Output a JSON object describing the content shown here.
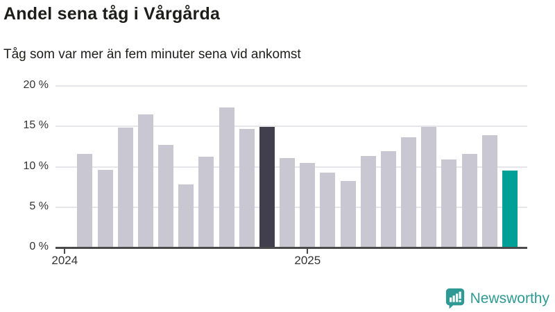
{
  "header": {
    "title": "Andel sena tåg i Vårgårda",
    "subtitle": "Tåg som var mer än fem minuter sena vid ankomst"
  },
  "branding": {
    "name": "Newsworthy",
    "logo_icon": "bar-chart-speech-bubble-icon"
  },
  "colors": {
    "background": "#ffffff",
    "bar_default": "#c9c7d2",
    "bar_highlight_dark": "#413e4d",
    "bar_highlight_teal": "#00a096",
    "axis": "#4a4a4a",
    "gridline": "#e6e5e9",
    "tick_text": "#333333",
    "title_text": "#1d1d1b",
    "brand_teal": "#2f9a93"
  },
  "chart_data": {
    "type": "bar",
    "title": "Andel sena tåg i Vårgårda",
    "subtitle": "Tåg som var mer än fem minuter sena vid ankomst",
    "unit": "%",
    "grid": "horizontal",
    "legend": "none",
    "ylim": [
      0,
      20
    ],
    "x": [
      "2024-02",
      "2024-03",
      "2024-04",
      "2024-05",
      "2024-06",
      "2024-07",
      "2024-08",
      "2024-09",
      "2024-10",
      "2024-11",
      "2024-12",
      "2025-01",
      "2025-02",
      "2025-03",
      "2025-04",
      "2025-05",
      "2025-06",
      "2025-07",
      "2025-08",
      "2025-09",
      "2025-10",
      "2025-11"
    ],
    "values": [
      11.7,
      9.7,
      14.9,
      16.6,
      12.8,
      7.9,
      11.3,
      17.4,
      14.8,
      15.0,
      11.2,
      10.6,
      9.4,
      8.3,
      11.4,
      12.0,
      13.7,
      15.0,
      11.0,
      11.7,
      14.0,
      9.6
    ],
    "highlight_dark": {
      "x": "2024-11",
      "index": 9
    },
    "highlight_teal": {
      "x": "2025-11",
      "index": 21
    },
    "yticks": [
      {
        "label": "20 %",
        "value": 20
      },
      {
        "label": "15 %",
        "value": 15
      },
      {
        "label": "10 %",
        "value": 10
      },
      {
        "label": "5 %",
        "value": 5
      },
      {
        "label": "0 %",
        "value": 0
      }
    ],
    "xticks": [
      {
        "label": "2024",
        "month_offset": 0
      },
      {
        "label": "2025",
        "month_offset": 12
      }
    ]
  }
}
